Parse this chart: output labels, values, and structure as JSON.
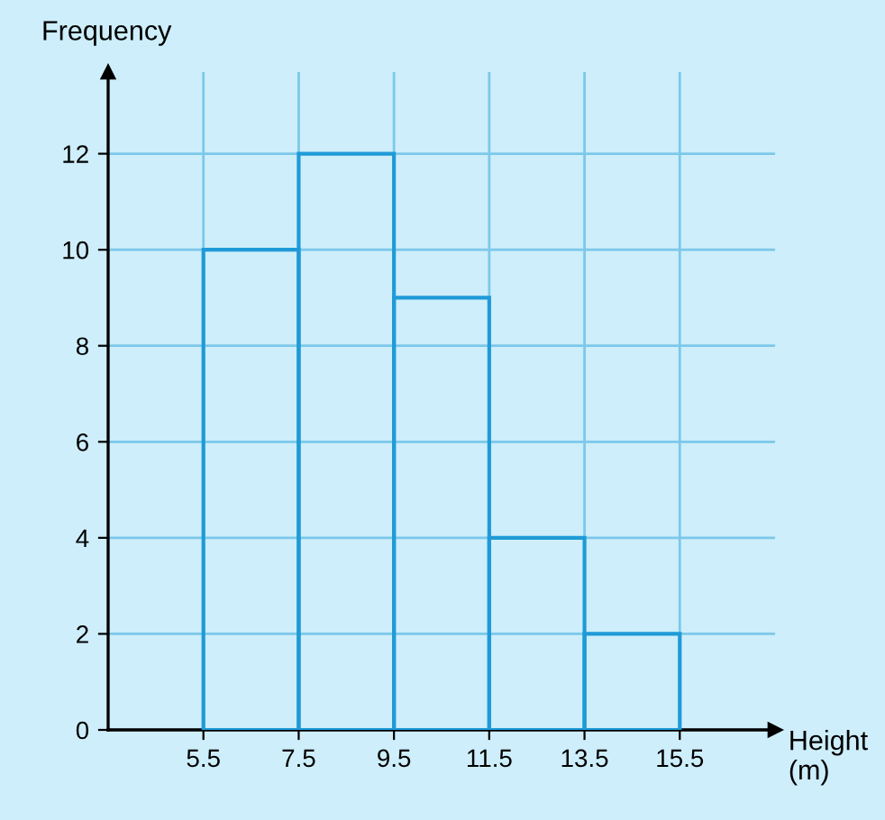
{
  "chart_data": {
    "type": "histogram",
    "ylabel": "Frequency",
    "xlabel": "Height (m)",
    "bins": [
      5.5,
      7.5,
      9.5,
      11.5,
      13.5,
      15.5
    ],
    "values": [
      10,
      12,
      9,
      4,
      2
    ],
    "color": "#1f9ad8",
    "xlim": [
      3.5,
      17.5
    ],
    "ylim": [
      0,
      13.7
    ],
    "xticks": [
      5.5,
      7.5,
      9.5,
      11.5,
      13.5,
      15.5
    ],
    "yticks": [
      0,
      2,
      4,
      6,
      8,
      10,
      12
    ],
    "grid": true
  }
}
